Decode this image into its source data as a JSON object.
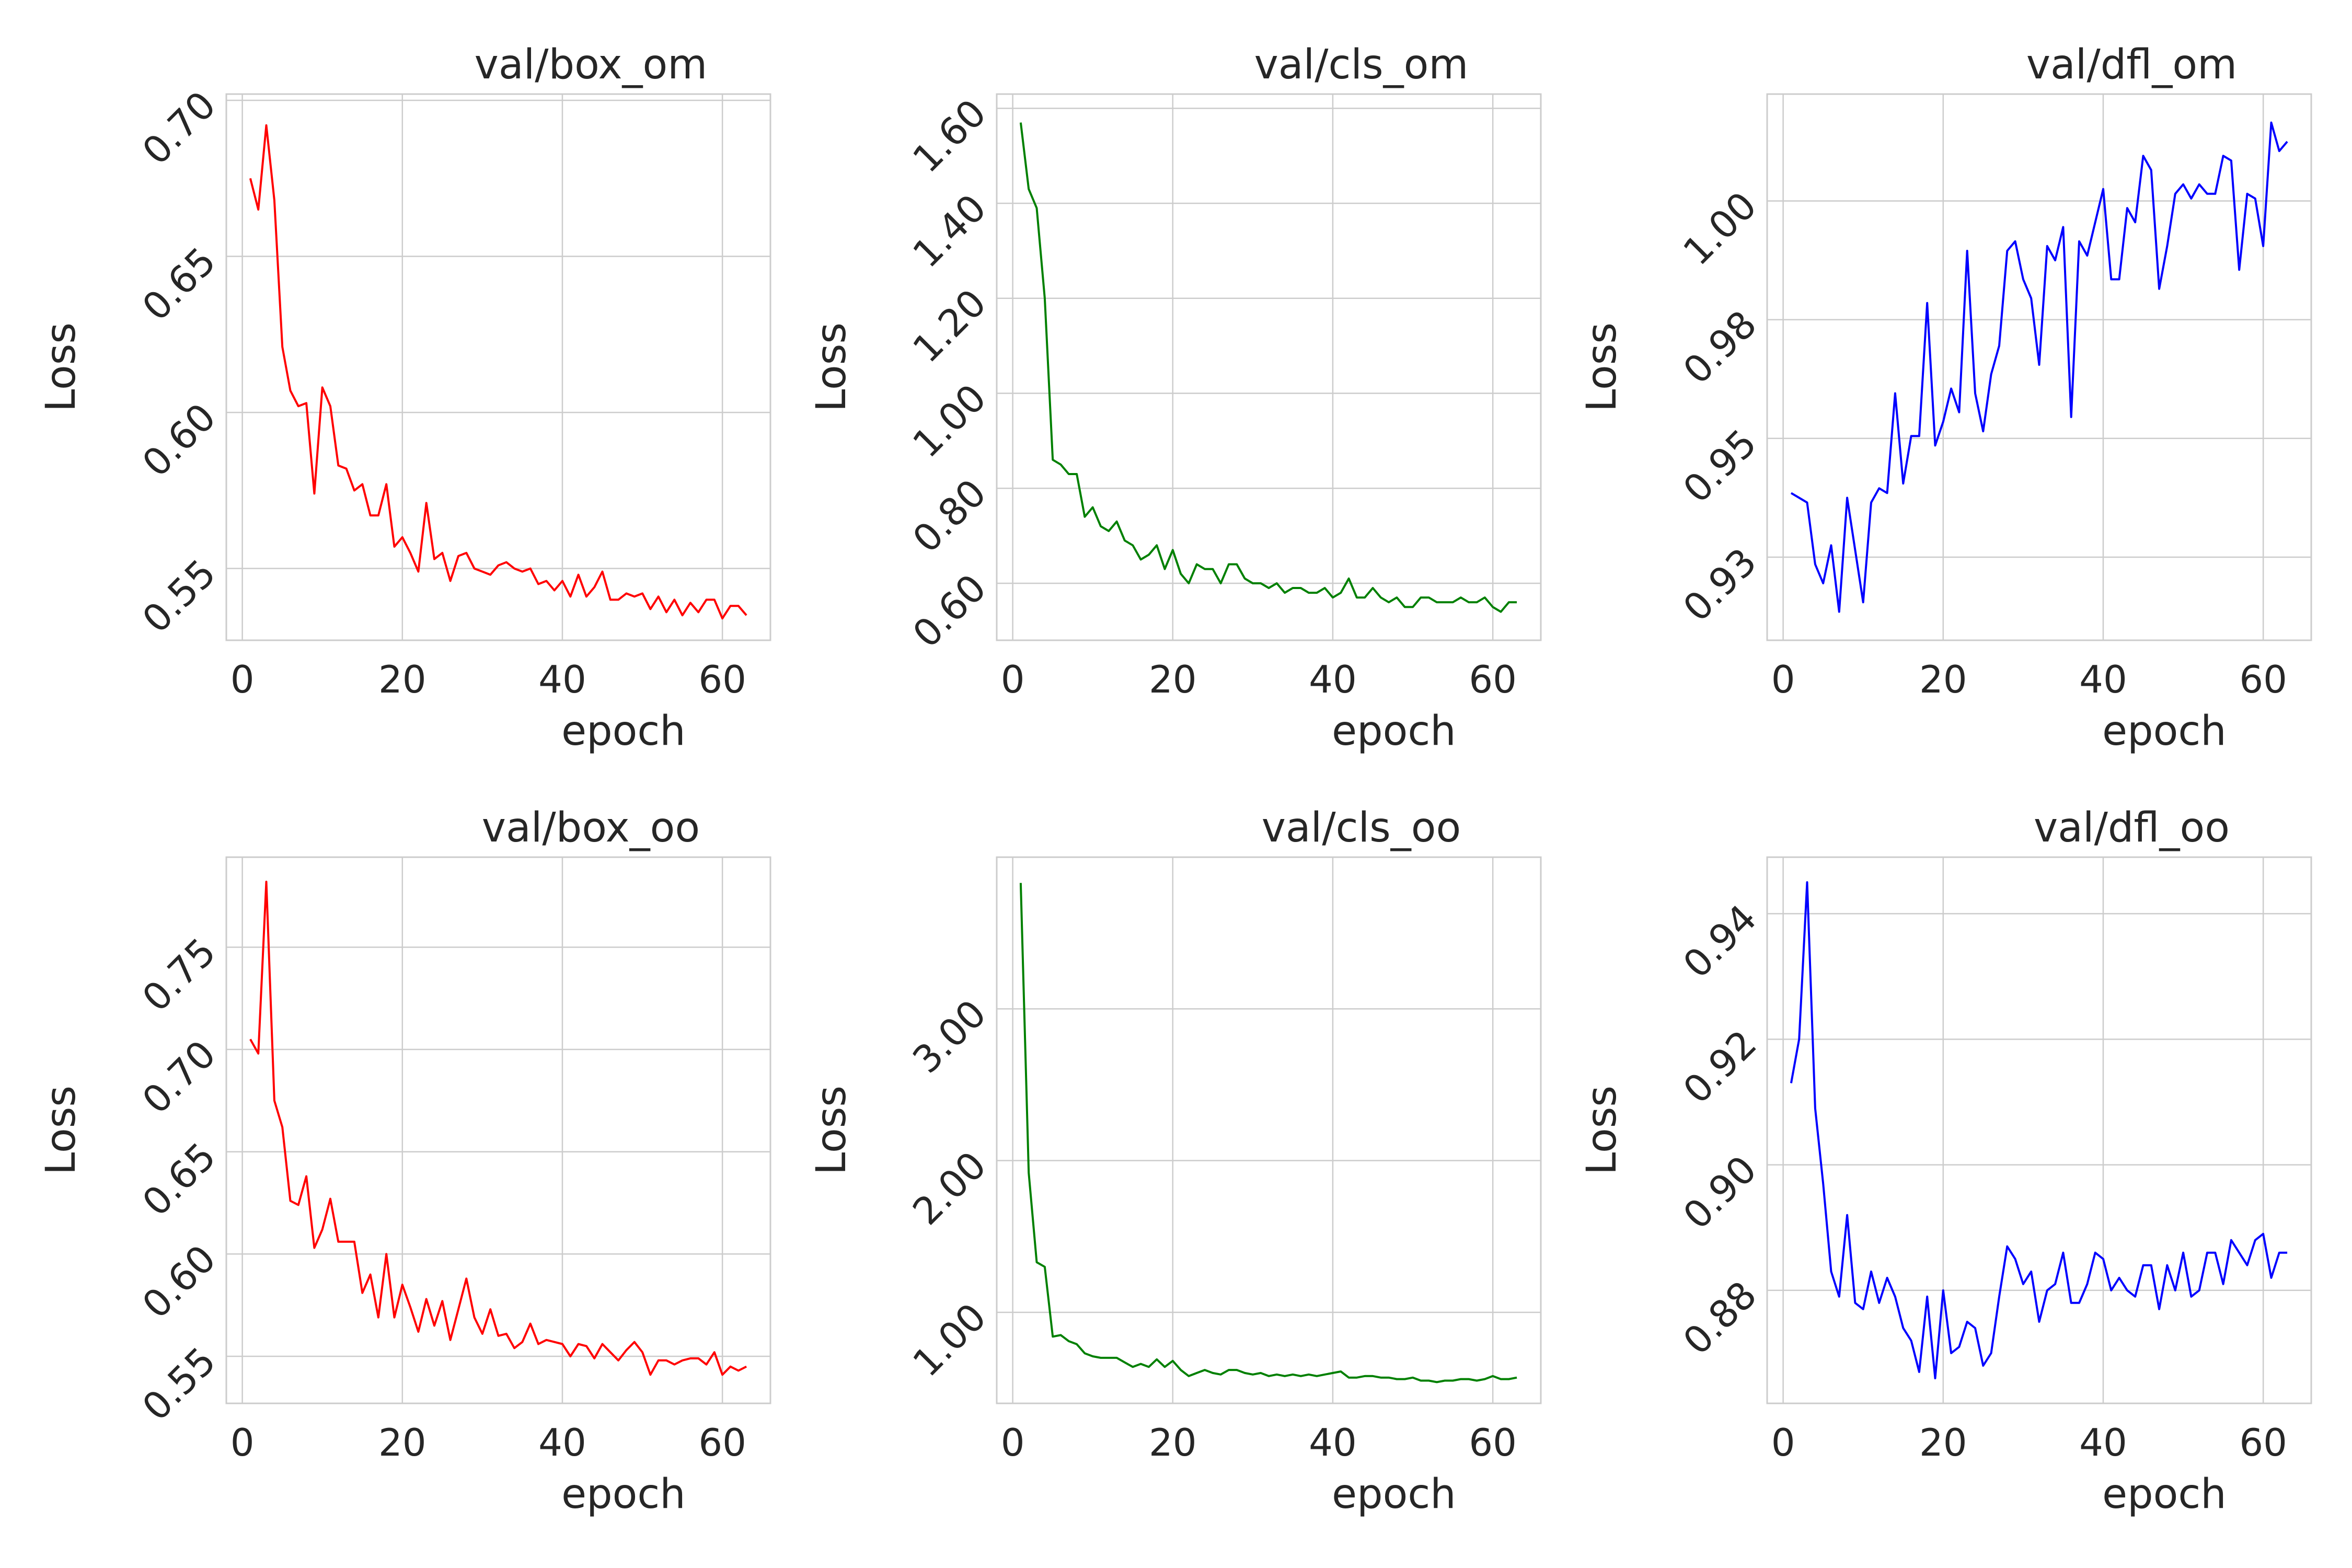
{
  "figure": {
    "background": "#ffffff",
    "grid_color": "#cccccc",
    "axis_color": "#cccccc"
  },
  "chart_data": [
    {
      "type": "line",
      "title": "val/box_om",
      "xlabel": "epoch",
      "ylabel": "Loss",
      "color": "#ff0000",
      "xlim": [
        -2,
        66
      ],
      "ylim": [
        0.527,
        0.702
      ],
      "xticks": [
        0,
        20,
        40,
        60
      ],
      "xtick_labels": [
        "0",
        "20",
        "40",
        "60"
      ],
      "yticks": [
        0.55,
        0.6,
        0.65,
        0.7
      ],
      "ytick_labels": [
        "0.55",
        "0.60",
        "0.65",
        "0.70"
      ],
      "grid": true,
      "legend": "none",
      "x": [
        1,
        2,
        3,
        4,
        5,
        6,
        7,
        8,
        9,
        10,
        11,
        12,
        13,
        14,
        15,
        16,
        17,
        18,
        19,
        20,
        21,
        22,
        23,
        24,
        25,
        26,
        27,
        28,
        29,
        30,
        31,
        32,
        33,
        34,
        35,
        36,
        37,
        38,
        39,
        40,
        41,
        42,
        43,
        44,
        45,
        46,
        47,
        48,
        49,
        50,
        51,
        52,
        53,
        54,
        55,
        56,
        57,
        58,
        59,
        60,
        61,
        62,
        63
      ],
      "y": [
        0.675,
        0.665,
        0.692,
        0.668,
        0.621,
        0.607,
        0.602,
        0.603,
        0.574,
        0.608,
        0.602,
        0.583,
        0.582,
        0.575,
        0.577,
        0.567,
        0.567,
        0.577,
        0.557,
        0.56,
        0.555,
        0.549,
        0.571,
        0.553,
        0.555,
        0.546,
        0.554,
        0.555,
        0.55,
        0.549,
        0.548,
        0.551,
        0.552,
        0.55,
        0.549,
        0.55,
        0.545,
        0.546,
        0.543,
        0.546,
        0.541,
        0.548,
        0.541,
        0.544,
        0.549,
        0.54,
        0.54,
        0.542,
        0.541,
        0.542,
        0.537,
        0.541,
        0.536,
        0.54,
        0.535,
        0.539,
        0.536,
        0.54,
        0.54,
        0.534,
        0.538,
        0.538,
        0.535
      ]
    },
    {
      "type": "line",
      "title": "val/cls_om",
      "xlabel": "epoch",
      "ylabel": "Loss",
      "color": "#008000",
      "xlim": [
        -2,
        66
      ],
      "ylim": [
        0.48,
        1.63
      ],
      "xticks": [
        0,
        20,
        40,
        60
      ],
      "xtick_labels": [
        "0",
        "20",
        "40",
        "60"
      ],
      "yticks": [
        0.6,
        0.8,
        1.0,
        1.2,
        1.4,
        1.6
      ],
      "ytick_labels": [
        "0.60",
        "0.80",
        "1.00",
        "1.20",
        "1.40",
        "1.60"
      ],
      "grid": true,
      "legend": "none",
      "x": [
        1,
        2,
        3,
        4,
        5,
        6,
        7,
        8,
        9,
        10,
        11,
        12,
        13,
        14,
        15,
        16,
        17,
        18,
        19,
        20,
        21,
        22,
        23,
        24,
        25,
        26,
        27,
        28,
        29,
        30,
        31,
        32,
        33,
        34,
        35,
        36,
        37,
        38,
        39,
        40,
        41,
        42,
        43,
        44,
        45,
        46,
        47,
        48,
        49,
        50,
        51,
        52,
        53,
        54,
        55,
        56,
        57,
        58,
        59,
        60,
        61,
        62,
        63
      ],
      "y": [
        1.57,
        1.43,
        1.39,
        1.2,
        0.86,
        0.85,
        0.83,
        0.83,
        0.74,
        0.76,
        0.72,
        0.71,
        0.73,
        0.69,
        0.68,
        0.65,
        0.66,
        0.68,
        0.63,
        0.67,
        0.62,
        0.6,
        0.64,
        0.63,
        0.63,
        0.6,
        0.64,
        0.64,
        0.61,
        0.6,
        0.6,
        0.59,
        0.6,
        0.58,
        0.59,
        0.59,
        0.58,
        0.58,
        0.59,
        0.57,
        0.58,
        0.61,
        0.57,
        0.57,
        0.59,
        0.57,
        0.56,
        0.57,
        0.55,
        0.55,
        0.57,
        0.57,
        0.56,
        0.56,
        0.56,
        0.57,
        0.56,
        0.56,
        0.57,
        0.55,
        0.54,
        0.56,
        0.56
      ]
    },
    {
      "type": "line",
      "title": "val/dfl_om",
      "xlabel": "epoch",
      "ylabel": "Loss",
      "color": "#0000ff",
      "xlim": [
        -2,
        66
      ],
      "ylim": [
        0.91,
        1.025
      ],
      "xticks": [
        0,
        20,
        40,
        60
      ],
      "xtick_labels": [
        "0",
        "20",
        "40",
        "60"
      ],
      "yticks": [
        0.9275,
        0.9525,
        0.9775,
        1.0025
      ],
      "ytick_labels": [
        "0.93",
        "0.95",
        "0.98",
        "1.00"
      ],
      "grid": true,
      "legend": "none",
      "x": [
        1,
        2,
        3,
        4,
        5,
        6,
        7,
        8,
        9,
        10,
        11,
        12,
        13,
        14,
        15,
        16,
        17,
        18,
        19,
        20,
        21,
        22,
        23,
        24,
        25,
        26,
        27,
        28,
        29,
        30,
        31,
        32,
        33,
        34,
        35,
        36,
        37,
        38,
        39,
        40,
        41,
        42,
        43,
        44,
        45,
        46,
        47,
        48,
        49,
        50,
        51,
        52,
        53,
        54,
        55,
        56,
        57,
        58,
        59,
        60,
        61,
        62,
        63
      ],
      "y": [
        0.941,
        0.94,
        0.939,
        0.926,
        0.922,
        0.93,
        0.916,
        0.94,
        0.929,
        0.918,
        0.939,
        0.942,
        0.941,
        0.962,
        0.943,
        0.953,
        0.953,
        0.981,
        0.951,
        0.956,
        0.963,
        0.958,
        0.992,
        0.962,
        0.954,
        0.966,
        0.972,
        0.992,
        0.994,
        0.986,
        0.982,
        0.968,
        0.993,
        0.99,
        0.997,
        0.957,
        0.994,
        0.991,
        0.998,
        1.005,
        0.986,
        0.986,
        1.001,
        0.998,
        1.012,
        1.009,
        0.984,
        0.993,
        1.004,
        1.006,
        1.003,
        1.006,
        1.004,
        1.004,
        1.012,
        1.011,
        0.988,
        1.004,
        1.003,
        0.993,
        1.019,
        1.013,
        1.015
      ]
    },
    {
      "type": "line",
      "title": "val/box_oo",
      "xlabel": "epoch",
      "ylabel": "Loss",
      "color": "#ff0000",
      "xlim": [
        -2,
        66
      ],
      "ylim": [
        0.527,
        0.794
      ],
      "xticks": [
        0,
        20,
        40,
        60
      ],
      "xtick_labels": [
        "0",
        "20",
        "40",
        "60"
      ],
      "yticks": [
        0.55,
        0.6,
        0.65,
        0.7,
        0.75
      ],
      "ytick_labels": [
        "0.55",
        "0.60",
        "0.65",
        "0.70",
        "0.75"
      ],
      "grid": true,
      "legend": "none",
      "x": [
        1,
        2,
        3,
        4,
        5,
        6,
        7,
        8,
        9,
        10,
        11,
        12,
        13,
        14,
        15,
        16,
        17,
        18,
        19,
        20,
        21,
        22,
        23,
        24,
        25,
        26,
        27,
        28,
        29,
        30,
        31,
        32,
        33,
        34,
        35,
        36,
        37,
        38,
        39,
        40,
        41,
        42,
        43,
        44,
        45,
        46,
        47,
        48,
        49,
        50,
        51,
        52,
        53,
        54,
        55,
        56,
        57,
        58,
        59,
        60,
        61,
        62,
        63
      ],
      "y": [
        0.705,
        0.698,
        0.782,
        0.675,
        0.662,
        0.626,
        0.624,
        0.638,
        0.603,
        0.612,
        0.627,
        0.606,
        0.606,
        0.606,
        0.581,
        0.59,
        0.569,
        0.6,
        0.569,
        0.585,
        0.574,
        0.562,
        0.578,
        0.565,
        0.577,
        0.558,
        0.573,
        0.588,
        0.569,
        0.561,
        0.573,
        0.56,
        0.561,
        0.554,
        0.557,
        0.566,
        0.556,
        0.558,
        0.557,
        0.556,
        0.55,
        0.556,
        0.555,
        0.549,
        0.556,
        0.552,
        0.548,
        0.553,
        0.557,
        0.552,
        0.541,
        0.548,
        0.548,
        0.546,
        0.548,
        0.549,
        0.549,
        0.546,
        0.552,
        0.541,
        0.545,
        0.543,
        0.545
      ]
    },
    {
      "type": "line",
      "title": "val/cls_oo",
      "xlabel": "epoch",
      "ylabel": "Loss",
      "color": "#008000",
      "xlim": [
        -2,
        66
      ],
      "ylim": [
        0.4,
        4.0
      ],
      "xticks": [
        0,
        20,
        40,
        60
      ],
      "xtick_labels": [
        "0",
        "20",
        "40",
        "60"
      ],
      "yticks": [
        1.0,
        2.0,
        3.0
      ],
      "ytick_labels": [
        "1.00",
        "2.00",
        "3.00"
      ],
      "grid": true,
      "legend": "none",
      "x": [
        1,
        2,
        3,
        4,
        5,
        6,
        7,
        8,
        9,
        10,
        11,
        12,
        13,
        14,
        15,
        16,
        17,
        18,
        19,
        20,
        21,
        22,
        23,
        24,
        25,
        26,
        27,
        28,
        29,
        30,
        31,
        32,
        33,
        34,
        35,
        36,
        37,
        38,
        39,
        40,
        41,
        42,
        43,
        44,
        45,
        46,
        47,
        48,
        49,
        50,
        51,
        52,
        53,
        54,
        55,
        56,
        57,
        58,
        59,
        60,
        61,
        62,
        63
      ],
      "y": [
        3.83,
        1.92,
        1.33,
        1.3,
        0.84,
        0.85,
        0.81,
        0.79,
        0.73,
        0.71,
        0.7,
        0.7,
        0.7,
        0.67,
        0.64,
        0.66,
        0.64,
        0.69,
        0.64,
        0.68,
        0.62,
        0.58,
        0.6,
        0.62,
        0.6,
        0.59,
        0.62,
        0.62,
        0.6,
        0.59,
        0.6,
        0.58,
        0.59,
        0.58,
        0.59,
        0.58,
        0.59,
        0.58,
        0.59,
        0.6,
        0.61,
        0.57,
        0.57,
        0.58,
        0.58,
        0.57,
        0.57,
        0.56,
        0.56,
        0.57,
        0.55,
        0.55,
        0.54,
        0.55,
        0.55,
        0.56,
        0.56,
        0.55,
        0.56,
        0.58,
        0.56,
        0.56,
        0.57
      ]
    },
    {
      "type": "line",
      "title": "val/dfl_oo",
      "xlabel": "epoch",
      "ylabel": "Loss",
      "color": "#0000ff",
      "xlim": [
        -2,
        66
      ],
      "ylim": [
        0.862,
        0.949
      ],
      "xticks": [
        0,
        20,
        40,
        60
      ],
      "xtick_labels": [
        "0",
        "20",
        "40",
        "60"
      ],
      "yticks": [
        0.88,
        0.9,
        0.92,
        0.94
      ],
      "ytick_labels": [
        "0.88",
        "0.90",
        "0.92",
        "0.94"
      ],
      "grid": true,
      "legend": "none",
      "x": [
        1,
        2,
        3,
        4,
        5,
        6,
        7,
        8,
        9,
        10,
        11,
        12,
        13,
        14,
        15,
        16,
        17,
        18,
        19,
        20,
        21,
        22,
        23,
        24,
        25,
        26,
        27,
        28,
        29,
        30,
        31,
        32,
        33,
        34,
        35,
        36,
        37,
        38,
        39,
        40,
        41,
        42,
        43,
        44,
        45,
        46,
        47,
        48,
        49,
        50,
        51,
        52,
        53,
        54,
        55,
        56,
        57,
        58,
        59,
        60,
        61,
        62,
        63
      ],
      "y": [
        0.913,
        0.92,
        0.945,
        0.909,
        0.897,
        0.883,
        0.879,
        0.892,
        0.878,
        0.877,
        0.883,
        0.878,
        0.882,
        0.879,
        0.874,
        0.872,
        0.867,
        0.879,
        0.866,
        0.88,
        0.87,
        0.871,
        0.875,
        0.874,
        0.868,
        0.87,
        0.879,
        0.887,
        0.885,
        0.881,
        0.883,
        0.875,
        0.88,
        0.881,
        0.886,
        0.878,
        0.878,
        0.881,
        0.886,
        0.885,
        0.88,
        0.882,
        0.88,
        0.879,
        0.884,
        0.884,
        0.877,
        0.884,
        0.88,
        0.886,
        0.879,
        0.88,
        0.886,
        0.886,
        0.881,
        0.888,
        0.886,
        0.884,
        0.888,
        0.889,
        0.882,
        0.886,
        0.886
      ]
    }
  ]
}
